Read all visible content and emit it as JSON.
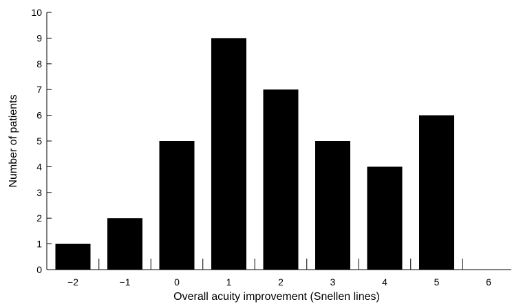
{
  "chart_data": {
    "type": "bar",
    "categories": [
      "−2",
      "−1",
      "0",
      "1",
      "2",
      "3",
      "4",
      "5",
      "6"
    ],
    "values": [
      1,
      2,
      5,
      9,
      7,
      5,
      4,
      6,
      0
    ],
    "xlabel": "Overall acuity improvement (Snellen lines)",
    "ylabel": "Number of patients",
    "ylim": [
      0,
      10
    ],
    "yticks": [
      0,
      1,
      2,
      3,
      4,
      5,
      6,
      7,
      8,
      9,
      10
    ],
    "grid": false,
    "colors": {
      "bar": "#000000",
      "axis": "#000000"
    }
  }
}
